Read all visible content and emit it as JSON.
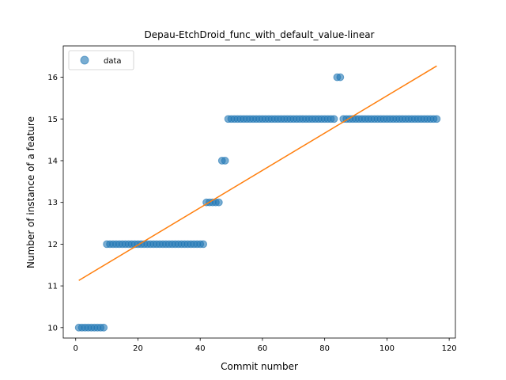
{
  "chart_data": {
    "type": "scatter",
    "title": "Depau-EtchDroid_func_with_default_value-linear",
    "xlabel": "Commit number",
    "ylabel": "Number of instance of a feature",
    "xlim": [
      -4,
      122
    ],
    "ylim": [
      9.75,
      16.75
    ],
    "xticks": [
      0,
      20,
      40,
      60,
      80,
      100,
      120
    ],
    "yticks": [
      10,
      11,
      12,
      13,
      14,
      15,
      16
    ],
    "grid": false,
    "legend": {
      "placement": "top-left",
      "entries": [
        "data"
      ]
    },
    "colors": {
      "data": "#1f77b4",
      "fit": "#ff7f0e"
    },
    "series": [
      {
        "name": "data",
        "kind": "scatter",
        "points": [
          [
            1,
            10
          ],
          [
            2,
            10
          ],
          [
            3,
            10
          ],
          [
            4,
            10
          ],
          [
            5,
            10
          ],
          [
            6,
            10
          ],
          [
            7,
            10
          ],
          [
            8,
            10
          ],
          [
            9,
            10
          ],
          [
            10,
            12
          ],
          [
            11,
            12
          ],
          [
            12,
            12
          ],
          [
            13,
            12
          ],
          [
            14,
            12
          ],
          [
            15,
            12
          ],
          [
            16,
            12
          ],
          [
            17,
            12
          ],
          [
            18,
            12
          ],
          [
            19,
            12
          ],
          [
            20,
            12
          ],
          [
            21,
            12
          ],
          [
            22,
            12
          ],
          [
            23,
            12
          ],
          [
            24,
            12
          ],
          [
            25,
            12
          ],
          [
            26,
            12
          ],
          [
            27,
            12
          ],
          [
            28,
            12
          ],
          [
            29,
            12
          ],
          [
            30,
            12
          ],
          [
            31,
            12
          ],
          [
            32,
            12
          ],
          [
            33,
            12
          ],
          [
            34,
            12
          ],
          [
            35,
            12
          ],
          [
            36,
            12
          ],
          [
            37,
            12
          ],
          [
            38,
            12
          ],
          [
            39,
            12
          ],
          [
            40,
            12
          ],
          [
            41,
            12
          ],
          [
            42,
            13
          ],
          [
            43,
            13
          ],
          [
            44,
            13
          ],
          [
            45,
            13
          ],
          [
            46,
            13
          ],
          [
            47,
            14
          ],
          [
            48,
            14
          ],
          [
            49,
            15
          ],
          [
            50,
            15
          ],
          [
            51,
            15
          ],
          [
            52,
            15
          ],
          [
            53,
            15
          ],
          [
            54,
            15
          ],
          [
            55,
            15
          ],
          [
            56,
            15
          ],
          [
            57,
            15
          ],
          [
            58,
            15
          ],
          [
            59,
            15
          ],
          [
            60,
            15
          ],
          [
            61,
            15
          ],
          [
            62,
            15
          ],
          [
            63,
            15
          ],
          [
            64,
            15
          ],
          [
            65,
            15
          ],
          [
            66,
            15
          ],
          [
            67,
            15
          ],
          [
            68,
            15
          ],
          [
            69,
            15
          ],
          [
            70,
            15
          ],
          [
            71,
            15
          ],
          [
            72,
            15
          ],
          [
            73,
            15
          ],
          [
            74,
            15
          ],
          [
            75,
            15
          ],
          [
            76,
            15
          ],
          [
            77,
            15
          ],
          [
            78,
            15
          ],
          [
            79,
            15
          ],
          [
            80,
            15
          ],
          [
            81,
            15
          ],
          [
            82,
            15
          ],
          [
            83,
            15
          ],
          [
            84,
            16
          ],
          [
            85,
            16
          ],
          [
            86,
            15
          ],
          [
            87,
            15
          ],
          [
            88,
            15
          ],
          [
            89,
            15
          ],
          [
            90,
            15
          ],
          [
            91,
            15
          ],
          [
            92,
            15
          ],
          [
            93,
            15
          ],
          [
            94,
            15
          ],
          [
            95,
            15
          ],
          [
            96,
            15
          ],
          [
            97,
            15
          ],
          [
            98,
            15
          ],
          [
            99,
            15
          ],
          [
            100,
            15
          ],
          [
            101,
            15
          ],
          [
            102,
            15
          ],
          [
            103,
            15
          ],
          [
            104,
            15
          ],
          [
            105,
            15
          ],
          [
            106,
            15
          ],
          [
            107,
            15
          ],
          [
            108,
            15
          ],
          [
            109,
            15
          ],
          [
            110,
            15
          ],
          [
            111,
            15
          ],
          [
            112,
            15
          ],
          [
            113,
            15
          ],
          [
            114,
            15
          ],
          [
            115,
            15
          ],
          [
            116,
            15
          ]
        ]
      },
      {
        "kind": "line",
        "points": [
          [
            1,
            11.13
          ],
          [
            116,
            16.27
          ]
        ]
      }
    ]
  }
}
